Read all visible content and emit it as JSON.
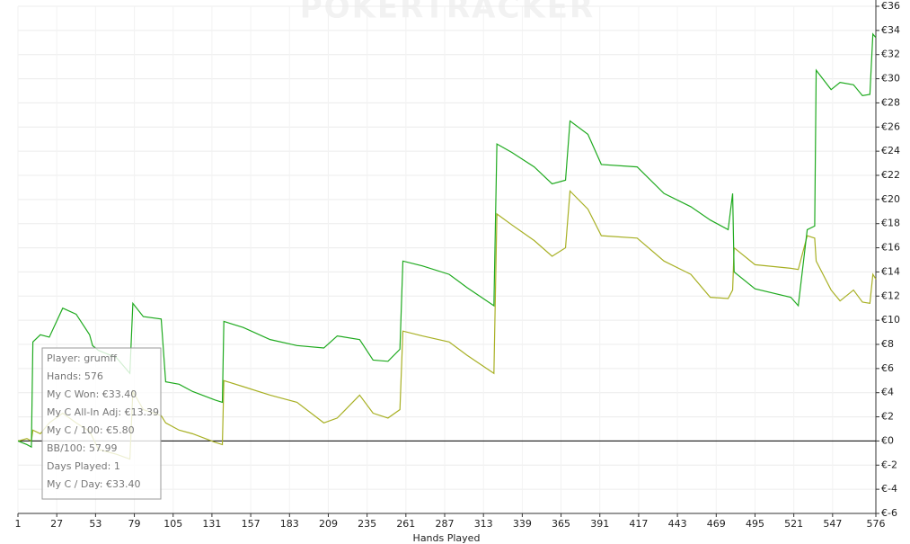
{
  "chart_data": {
    "type": "line",
    "watermark": "POKERTRACKER",
    "x_label": "Hands Played",
    "x": [
      1,
      7,
      10,
      11,
      16,
      22,
      31,
      40,
      49,
      51,
      55,
      67,
      76,
      78,
      85,
      97,
      100,
      109,
      118,
      133,
      138,
      139,
      152,
      170,
      188,
      206,
      215,
      230,
      239,
      249,
      257,
      259,
      272,
      290,
      302,
      320,
      322,
      332,
      347,
      359,
      368,
      371,
      383,
      392,
      416,
      434,
      452,
      465,
      477,
      480,
      481,
      495,
      519,
      524,
      530,
      535,
      536,
      546,
      552,
      561,
      567,
      572,
      574,
      576
    ],
    "series": [
      {
        "color": "#1faa1f",
        "values": [
          0,
          -0.3,
          -0.5,
          8.2,
          8.8,
          8.6,
          11,
          10.5,
          8.8,
          7.9,
          7.5,
          6.9,
          5.6,
          11.4,
          10.3,
          10.1,
          4.9,
          4.7,
          4.1,
          3.4,
          3.2,
          9.9,
          9.4,
          8.4,
          7.9,
          7.7,
          8.7,
          8.4,
          6.7,
          6.6,
          7.6,
          14.9,
          14.5,
          13.8,
          12.7,
          11.2,
          24.6,
          23.9,
          22.7,
          21.3,
          21.6,
          26.5,
          25.4,
          22.9,
          22.7,
          20.5,
          19.4,
          18.3,
          17.5,
          20.5,
          14,
          12.6,
          11.9,
          11.2,
          17.5,
          17.8,
          30.7,
          29.1,
          29.7,
          29.5,
          28.6,
          28.7,
          33.7,
          33.4
        ]
      },
      {
        "color": "#a8b024",
        "values": [
          0,
          0.2,
          0,
          0.9,
          0.6,
          1.5,
          2.3,
          1.5,
          0.8,
          0.3,
          -0.7,
          -1.1,
          -1.5,
          4.1,
          2.6,
          2.1,
          1.5,
          0.9,
          0.6,
          -0.1,
          -0.3,
          5,
          4.5,
          3.8,
          3.2,
          1.5,
          1.9,
          3.8,
          2.3,
          1.9,
          2.6,
          9.1,
          8.7,
          8.2,
          7.1,
          5.6,
          18.8,
          17.9,
          16.6,
          15.3,
          16,
          20.7,
          19.2,
          17,
          16.8,
          14.9,
          13.8,
          11.9,
          11.8,
          12.5,
          16,
          14.6,
          14.3,
          14.2,
          17,
          16.8,
          14.9,
          12.5,
          11.6,
          12.5,
          11.5,
          11.4,
          13.8,
          13.4
        ]
      }
    ],
    "xlim": [
      1,
      576
    ],
    "xticks": [
      1,
      27,
      53,
      79,
      105,
      131,
      157,
      183,
      209,
      235,
      261,
      287,
      313,
      339,
      365,
      391,
      417,
      443,
      469,
      495,
      521,
      547,
      576
    ],
    "ylim": [
      -6,
      36
    ],
    "yticks": [
      {
        "value": -6,
        "label": "€-6"
      },
      {
        "value": -4,
        "label": "€-4"
      },
      {
        "value": -2,
        "label": "€-2"
      },
      {
        "value": 0,
        "label": "€0"
      },
      {
        "value": 2,
        "label": "€2"
      },
      {
        "value": 4,
        "label": "€4"
      },
      {
        "value": 6,
        "label": "€6"
      },
      {
        "value": 8,
        "label": "€8"
      },
      {
        "value": 10,
        "label": "€10"
      },
      {
        "value": 12,
        "label": "€12"
      },
      {
        "value": 14,
        "label": "€14"
      },
      {
        "value": 16,
        "label": "€16"
      },
      {
        "value": 18,
        "label": "€18"
      },
      {
        "value": 20,
        "label": "€20"
      },
      {
        "value": 22,
        "label": "€22"
      },
      {
        "value": 24,
        "label": "€24"
      },
      {
        "value": 26,
        "label": "€26"
      },
      {
        "value": 28,
        "label": "€28"
      },
      {
        "value": 30,
        "label": "€30"
      },
      {
        "value": 32,
        "label": "€32"
      },
      {
        "value": 34,
        "label": "€34"
      },
      {
        "value": 36,
        "label": "€36"
      }
    ],
    "grid": true,
    "tooltip": [
      "Player: grumff",
      "Hands: 576",
      "My C Won: €33.40",
      "My C All-In Adj: €13.39",
      "My C / 100: €5.80",
      "BB/100: 57.99",
      "Days Played: 1",
      "My C / Day: €33.40"
    ]
  }
}
